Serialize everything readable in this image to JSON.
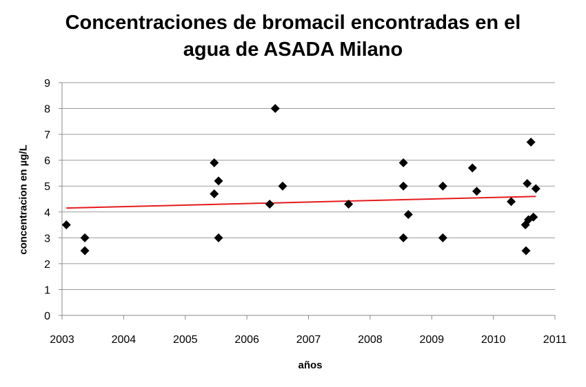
{
  "chart_data": {
    "type": "scatter",
    "title_lines": [
      "Concentraciones de bromacil encontradas en el",
      "agua de ASADA Milano"
    ],
    "xlabel": "años",
    "ylabel": "concentracion en µg/L",
    "xlim": [
      2003,
      2011
    ],
    "ylim": [
      0,
      9
    ],
    "xticks": [
      "2003",
      "2004",
      "2005",
      "2006",
      "2007",
      "2008",
      "2009",
      "2010",
      "2011"
    ],
    "yticks": [
      "0",
      "1",
      "2",
      "3",
      "4",
      "5",
      "6",
      "7",
      "8",
      "9"
    ],
    "grid": "horizontal",
    "legend": "none",
    "colors": {
      "points": "#000000",
      "trendline": "#e41a1c",
      "grid": "#9a9a9a"
    },
    "points": [
      {
        "x": 2003.07,
        "y": 3.5
      },
      {
        "x": 2003.37,
        "y": 3.0
      },
      {
        "x": 2003.37,
        "y": 2.5
      },
      {
        "x": 2005.47,
        "y": 5.9
      },
      {
        "x": 2005.47,
        "y": 4.7
      },
      {
        "x": 2005.54,
        "y": 5.2
      },
      {
        "x": 2005.54,
        "y": 3.0
      },
      {
        "x": 2006.37,
        "y": 4.3
      },
      {
        "x": 2006.46,
        "y": 8.0
      },
      {
        "x": 2006.58,
        "y": 5.0
      },
      {
        "x": 2007.65,
        "y": 4.3
      },
      {
        "x": 2008.54,
        "y": 5.9
      },
      {
        "x": 2008.54,
        "y": 5.0
      },
      {
        "x": 2008.54,
        "y": 3.0
      },
      {
        "x": 2008.62,
        "y": 3.9
      },
      {
        "x": 2009.18,
        "y": 5.0
      },
      {
        "x": 2009.18,
        "y": 3.0
      },
      {
        "x": 2009.66,
        "y": 5.7
      },
      {
        "x": 2009.73,
        "y": 4.8
      },
      {
        "x": 2010.29,
        "y": 4.4
      },
      {
        "x": 2010.52,
        "y": 3.5
      },
      {
        "x": 2010.53,
        "y": 2.5
      },
      {
        "x": 2010.55,
        "y": 5.1
      },
      {
        "x": 2010.57,
        "y": 3.7
      },
      {
        "x": 2010.61,
        "y": 6.7
      },
      {
        "x": 2010.65,
        "y": 3.8
      },
      {
        "x": 2010.69,
        "y": 4.9
      }
    ],
    "trendline": {
      "x": [
        2003.07,
        2010.69
      ],
      "y": [
        4.15,
        4.6
      ]
    }
  }
}
